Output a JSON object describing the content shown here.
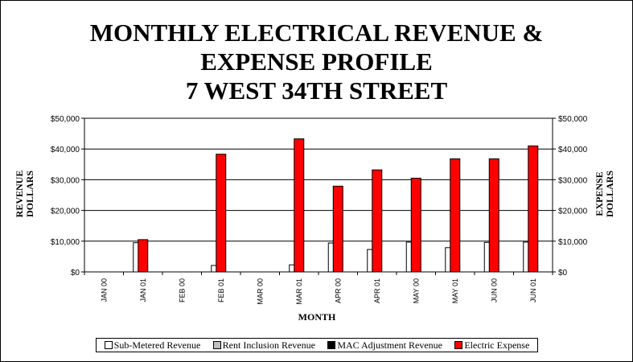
{
  "title_lines": [
    "MONTHLY ELECTRICAL REVENUE &",
    "EXPENSE PROFILE",
    "7 WEST 34TH STREET"
  ],
  "chart_data": {
    "type": "bar",
    "categories": [
      "JAN 00",
      "JAN 01",
      "FEB 00",
      "FEB 01",
      "MAR 00",
      "MAR 01",
      "APR 00",
      "APR 01",
      "MAY 00",
      "MAY 01",
      "JUN 00",
      "JUN 01"
    ],
    "series": [
      {
        "name": "Sub-Metered Revenue",
        "color": "#ffffff",
        "values": [
          0,
          9500,
          0,
          2100,
          0,
          2300,
          9400,
          7300,
          9700,
          7900,
          9600,
          9700
        ]
      },
      {
        "name": "Rent Inclusion Revenue",
        "color": "#c0c0c0",
        "values": [
          0,
          0,
          0,
          0,
          0,
          0,
          0,
          0,
          0,
          0,
          0,
          0
        ]
      },
      {
        "name": "MAC Adjustment Revenue",
        "color": "#000000",
        "values": [
          0,
          0,
          0,
          0,
          0,
          0,
          0,
          0,
          0,
          0,
          0,
          0
        ]
      },
      {
        "name": "Electric Expense",
        "color": "#ff0000",
        "values": [
          0,
          10500,
          0,
          38300,
          0,
          43300,
          27900,
          33200,
          30500,
          36800,
          36800,
          41000
        ]
      }
    ],
    "xlabel": "MONTH",
    "ylabel_left": [
      "REVENUE",
      "DOLLARS"
    ],
    "ylabel_right": [
      "EXPENSE",
      "DOLLARS"
    ],
    "ylim": [
      0,
      50000
    ],
    "yticks": [
      "$0",
      "$10,000",
      "$20,000",
      "$30,000",
      "$40,000",
      "$50,000"
    ],
    "y2ticks": [
      "$0",
      "$10,000",
      "$20,000",
      "$30,000",
      "$40,000",
      "$50,000"
    ],
    "grid": true,
    "legend_position": "bottom"
  }
}
